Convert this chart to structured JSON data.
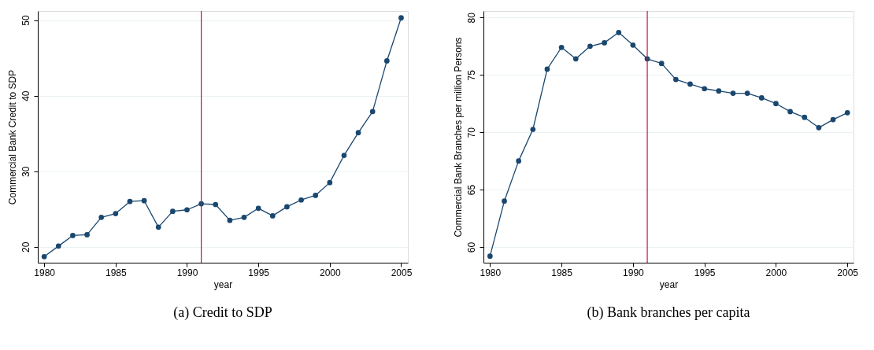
{
  "chart_data": [
    {
      "type": "line",
      "title": "(a) Credit to SDP",
      "xlabel": "year",
      "ylabel": "Commercial Bank Credit to SDP",
      "x": [
        1980,
        1981,
        1982,
        1983,
        1984,
        1985,
        1986,
        1987,
        1988,
        1989,
        1990,
        1991,
        1992,
        1993,
        1994,
        1995,
        1996,
        1997,
        1998,
        1999,
        2000,
        2001,
        2002,
        2003,
        2004,
        2005
      ],
      "series": [
        {
          "color": "#1a476f",
          "values": [
            18.7,
            20.1,
            21.5,
            21.6,
            23.9,
            24.4,
            26.0,
            26.1,
            22.6,
            24.7,
            24.9,
            25.7,
            25.6,
            23.5,
            23.9,
            25.1,
            24.1,
            25.3,
            26.2,
            26.8,
            28.5,
            32.1,
            35.1,
            37.9,
            44.6,
            50.3
          ]
        }
      ],
      "xlim": [
        1979.55,
        2005.47
      ],
      "xticks": [
        1980,
        1985,
        1990,
        1995,
        2000,
        2005
      ],
      "ylim": [
        17.9,
        51.2
      ],
      "yticks": [
        20,
        30,
        40,
        50
      ],
      "ref_lines": [
        {
          "axis": "x",
          "value": 1991,
          "color": "#c0143c"
        }
      ],
      "grid": "y",
      "marker": "circle",
      "line_style": "solid"
    },
    {
      "type": "line",
      "title": "(b) Bank branches per capita",
      "xlabel": "year",
      "ylabel": "Commercial Bank Branches per million Persons",
      "x": [
        1980,
        1981,
        1982,
        1983,
        1984,
        1985,
        1986,
        1987,
        1988,
        1989,
        1990,
        1991,
        1992,
        1993,
        1994,
        1995,
        1996,
        1997,
        1998,
        1999,
        2000,
        2001,
        2002,
        2003,
        2004,
        2005
      ],
      "series": [
        {
          "color": "#1a476f",
          "values": [
            59.2,
            64.0,
            67.5,
            70.25,
            75.5,
            77.4,
            76.4,
            77.5,
            77.8,
            78.7,
            77.6,
            76.4,
            76.0,
            74.6,
            74.2,
            73.8,
            73.6,
            73.4,
            73.4,
            73.0,
            72.5,
            71.8,
            71.3,
            70.4,
            71.1,
            71.7
          ]
        }
      ],
      "xlim": [
        1979.54,
        2005.43
      ],
      "xticks": [
        1980,
        1985,
        1990,
        1995,
        2000,
        2005
      ],
      "ylim": [
        58.63,
        80.57
      ],
      "yticks": [
        60,
        65,
        70,
        75,
        80
      ],
      "ref_lines": [
        {
          "axis": "x",
          "value": 1991,
          "color": "#c0143c"
        }
      ],
      "grid": "y",
      "marker": "circle",
      "line_style": "solid"
    }
  ]
}
